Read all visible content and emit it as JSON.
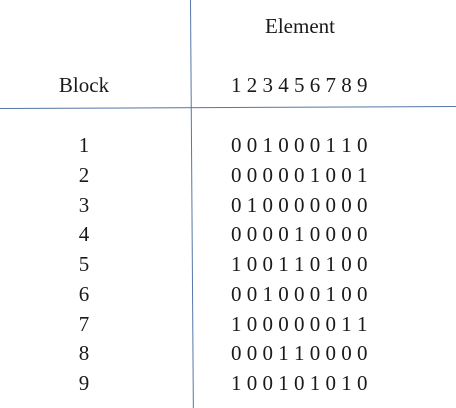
{
  "table": {
    "column_group_title": "Element",
    "row_header": "Block",
    "element_numbers": "1 2 3 4 5 6 7 8 9",
    "rows": [
      {
        "block": "1",
        "bits": "0 0 1 0 0 0 1 1 0"
      },
      {
        "block": "2",
        "bits": "0 0 0 0 0 1 0 0 1"
      },
      {
        "block": "3",
        "bits": "0 1 0 0 0 0 0 0 0"
      },
      {
        "block": "4",
        "bits": "0 0 0 0 1 0 0 0 0"
      },
      {
        "block": "5",
        "bits": "1 0 0 1 1 0 1 0 0"
      },
      {
        "block": "6",
        "bits": "0 0 1 0 0 0 1 0 0"
      },
      {
        "block": "7",
        "bits": "1 0 0 0 0 0 0 1 1"
      },
      {
        "block": "8",
        "bits": "0 0 0 1 1 0 0 0 0"
      },
      {
        "block": "9",
        "bits": "1 0 0 1 0 1 0 1 0"
      }
    ]
  },
  "colors": {
    "rule_lines": "#5577a6",
    "text": "#1a1a1a"
  }
}
